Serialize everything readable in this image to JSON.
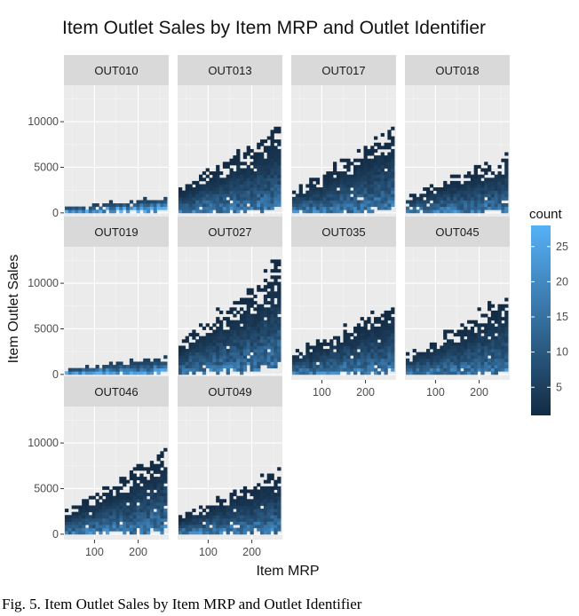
{
  "caption": "Fig. 5. Item Outlet Sales by Item MRP and Outlet Identifier",
  "chart_data": {
    "type": "heatmap",
    "subtype": "faceted 2d-bin count plot",
    "title": "Item Outlet Sales by Item MRP and Outlet Identifier",
    "xlabel": "Item MRP",
    "ylabel": "Item Outlet Sales",
    "xlim": [
      30,
      270
    ],
    "ylim": [
      -600,
      14000
    ],
    "x_ticks": [
      100,
      200
    ],
    "x_tick_labels": [
      "100",
      "200"
    ],
    "y_ticks": [
      0,
      5000,
      10000
    ],
    "y_tick_labels": [
      "0",
      "5000",
      "10000"
    ],
    "grid": true,
    "legend": {
      "title": "count",
      "position": "right",
      "range": [
        1,
        28
      ],
      "ticks": [
        5,
        10,
        15,
        20,
        25
      ],
      "tick_labels": [
        "5",
        "10",
        "15",
        "20",
        "25"
      ],
      "low_color": "#132B43",
      "high_color": "#56B1F7"
    },
    "facets": [
      {
        "label": "OUT010",
        "mrp_range": [
          32,
          266
        ],
        "max_sales": 1800,
        "min_sales": 110
      },
      {
        "label": "OUT013",
        "mrp_range": [
          32,
          266
        ],
        "max_sales": 10200,
        "min_sales": 120
      },
      {
        "label": "OUT017",
        "mrp_range": [
          32,
          266
        ],
        "max_sales": 9700,
        "min_sales": 140
      },
      {
        "label": "OUT018",
        "mrp_range": [
          32,
          266
        ],
        "max_sales": 7000,
        "min_sales": 100
      },
      {
        "label": "OUT019",
        "mrp_range": [
          32,
          266
        ],
        "max_sales": 1900,
        "min_sales": 100
      },
      {
        "label": "OUT027",
        "mrp_range": [
          32,
          266
        ],
        "max_sales": 13100,
        "min_sales": 240
      },
      {
        "label": "OUT035",
        "mrp_range": [
          32,
          266
        ],
        "max_sales": 8500,
        "min_sales": 120
      },
      {
        "label": "OUT045",
        "mrp_range": [
          32,
          266
        ],
        "max_sales": 9000,
        "min_sales": 110
      },
      {
        "label": "OUT046",
        "mrp_range": [
          32,
          266
        ],
        "max_sales": 9800,
        "min_sales": 140
      },
      {
        "label": "OUT049",
        "mrp_range": [
          32,
          266
        ],
        "max_sales": 7700,
        "min_sales": 110
      }
    ]
  }
}
